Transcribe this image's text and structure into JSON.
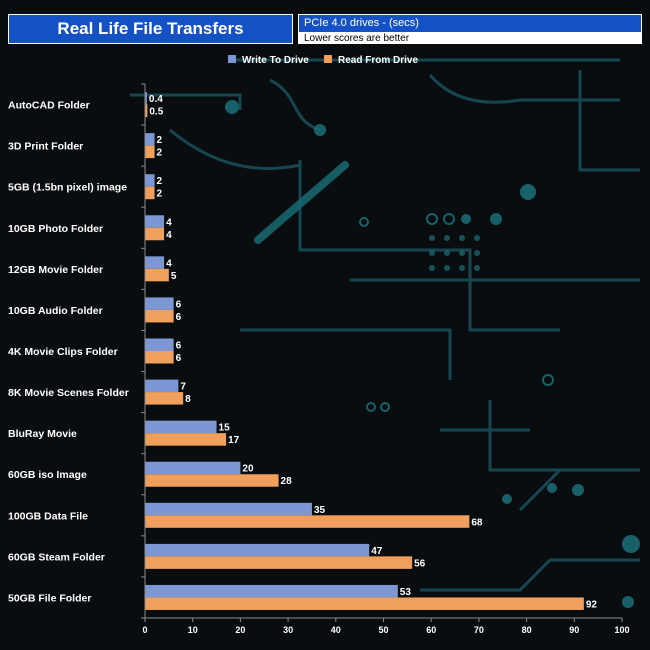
{
  "header": {
    "title": "Real Life File Transfers",
    "subtitle": "PCIe 4.0 drives - (secs)",
    "note": "Lower scores are better"
  },
  "colors": {
    "write": "#7c97d4",
    "read": "#f0a05c",
    "title_bg": "#1351c4",
    "circuit": "#1a5560"
  },
  "chart_data": {
    "type": "bar",
    "orientation": "horizontal",
    "categories": [
      "AutoCAD Folder",
      "3D Print Folder",
      "5GB (1.5bn pixel) image",
      "10GB Photo Folder",
      "12GB Movie Folder",
      "10GB Audio Folder",
      "4K Movie Clips Folder",
      "8K Movie Scenes Folder",
      "BluRay Movie",
      "60GB iso Image",
      "100GB Data File",
      "60GB Steam Folder",
      "50GB File Folder"
    ],
    "series": [
      {
        "name": "Write To  Drive",
        "values": [
          0.4,
          2,
          2,
          4,
          4,
          6,
          6,
          7,
          15,
          20,
          35,
          47,
          53
        ]
      },
      {
        "name": "Read From  Drive",
        "values": [
          0.5,
          2,
          2,
          4,
          5,
          6,
          6,
          8,
          17,
          28,
          68,
          56,
          92
        ]
      }
    ],
    "xlim": [
      0,
      100
    ],
    "xticks": [
      0,
      10,
      20,
      30,
      40,
      50,
      60,
      70,
      80,
      90,
      100
    ],
    "legend_position": "top-center",
    "grid": false
  }
}
